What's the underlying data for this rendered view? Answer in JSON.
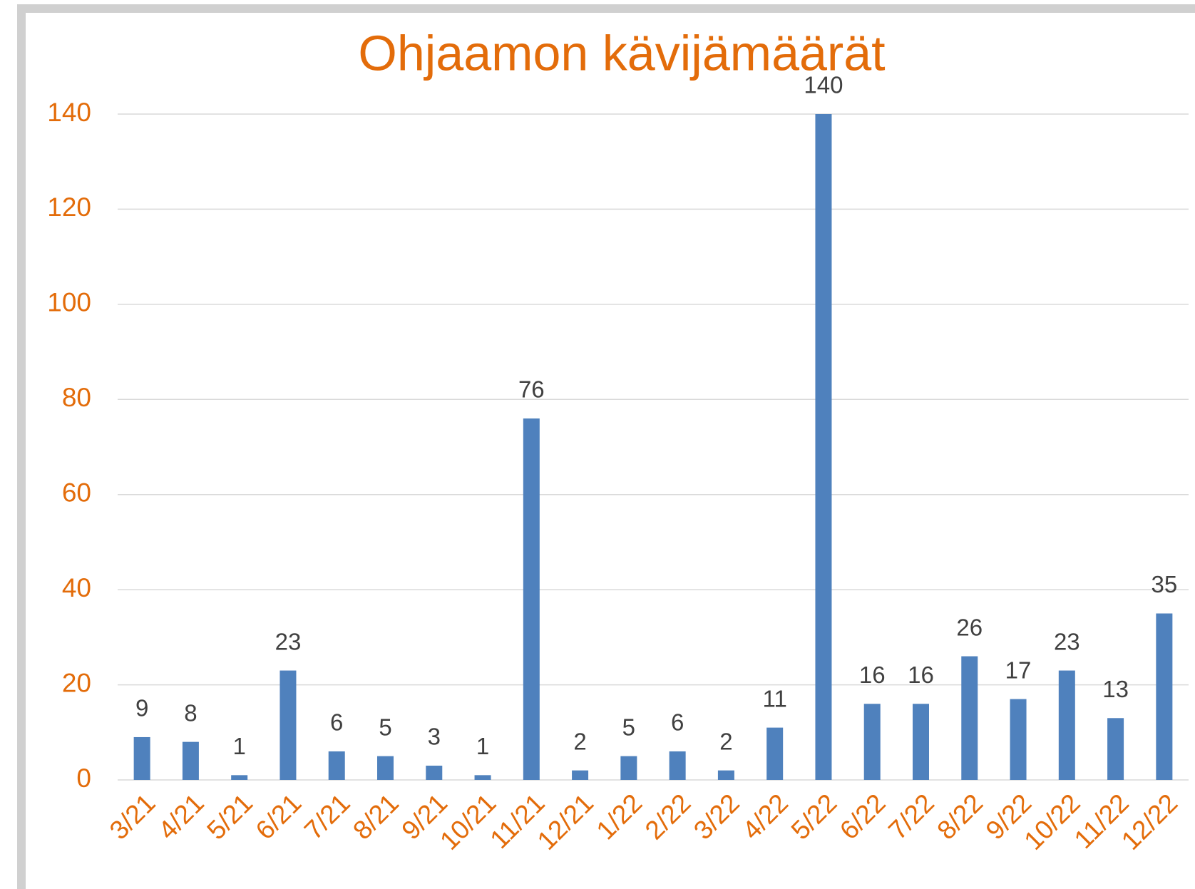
{
  "chart_data": {
    "type": "bar",
    "title": "Ohjaamon kävijämäärät",
    "categories": [
      "3/21",
      "4/21",
      "5/21",
      "6/21",
      "7/21",
      "8/21",
      "9/21",
      "10/21",
      "11/21",
      "12/21",
      "1/22",
      "2/22",
      "3/22",
      "4/22",
      "5/22",
      "6/22",
      "7/22",
      "8/22",
      "9/22",
      "10/22",
      "11/22",
      "12/22"
    ],
    "values": [
      9,
      8,
      1,
      23,
      6,
      5,
      3,
      1,
      76,
      2,
      5,
      6,
      2,
      11,
      140,
      16,
      16,
      26,
      17,
      23,
      13,
      35
    ],
    "color": "#4f81bd",
    "ylim": [
      0,
      140
    ],
    "yticks": [
      0,
      20,
      40,
      60,
      80,
      100,
      120,
      140
    ],
    "grid": true
  }
}
